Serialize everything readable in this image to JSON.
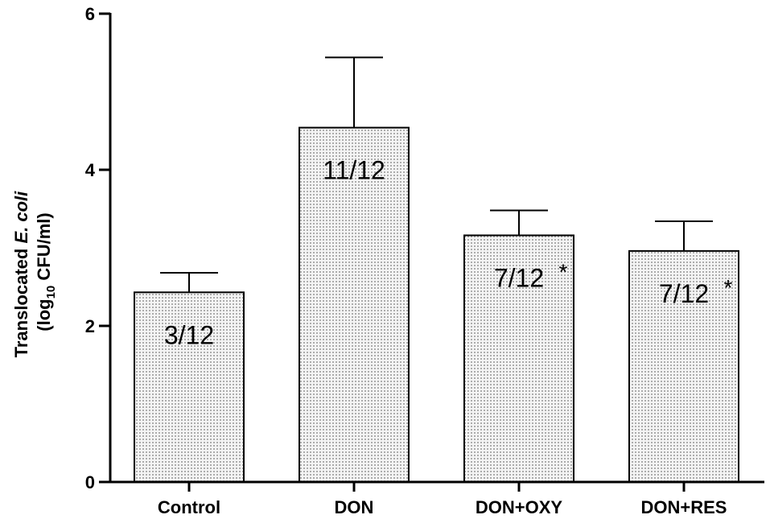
{
  "chart_data": {
    "type": "bar",
    "categories": [
      "Control",
      "DON",
      "DON+OXY",
      "DON+RES"
    ],
    "values": [
      2.43,
      4.54,
      3.16,
      2.96
    ],
    "errors": [
      0.25,
      0.9,
      0.32,
      0.38
    ],
    "bar_labels": [
      "3/12",
      "11/12",
      "7/12",
      "7/12"
    ],
    "significance": [
      "",
      "",
      "*",
      "*"
    ],
    "ylabel_line1_prefix": "Translocated ",
    "ylabel_line1_italic": "E. coli",
    "ylabel_line2_prefix": "(log",
    "ylabel_line2_sub": "10",
    "ylabel_line2_suffix": " CFU/ml)",
    "ylim": [
      0,
      6
    ],
    "yticks": [
      0,
      2,
      4,
      6
    ],
    "bar_fill": "#f4f4f4",
    "dot_color": "#7a7a7a"
  }
}
